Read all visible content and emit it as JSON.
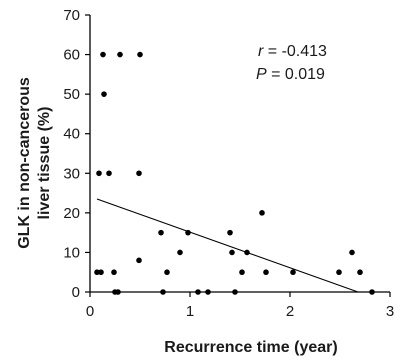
{
  "chart_data": {
    "type": "scatter",
    "title": "",
    "xlabel": "Recurrence time (year)",
    "ylabel_lines": [
      "GLK in non-cancerous",
      "liver tissue (%)"
    ],
    "xlim": [
      0,
      3
    ],
    "ylim": [
      0,
      70
    ],
    "x_ticks": [
      0,
      1,
      2,
      3
    ],
    "y_ticks": [
      0,
      10,
      20,
      30,
      40,
      50,
      60,
      70
    ],
    "grid": false,
    "annotations": {
      "r_symbol": "r",
      "r_value": " = -0.413",
      "p_symbol": "P",
      "p_value": " = 0.019"
    },
    "points": [
      {
        "x": 0.07,
        "y": 5
      },
      {
        "x": 0.11,
        "y": 5
      },
      {
        "x": 0.09,
        "y": 30
      },
      {
        "x": 0.13,
        "y": 60
      },
      {
        "x": 0.14,
        "y": 50
      },
      {
        "x": 0.19,
        "y": 30
      },
      {
        "x": 0.24,
        "y": 5
      },
      {
        "x": 0.25,
        "y": 0
      },
      {
        "x": 0.28,
        "y": 0
      },
      {
        "x": 0.3,
        "y": 60
      },
      {
        "x": 0.49,
        "y": 30
      },
      {
        "x": 0.5,
        "y": 60
      },
      {
        "x": 0.49,
        "y": 8
      },
      {
        "x": 0.71,
        "y": 15
      },
      {
        "x": 0.73,
        "y": 0
      },
      {
        "x": 0.77,
        "y": 5
      },
      {
        "x": 0.9,
        "y": 10
      },
      {
        "x": 0.98,
        "y": 15
      },
      {
        "x": 1.08,
        "y": 0
      },
      {
        "x": 1.18,
        "y": 0
      },
      {
        "x": 1.4,
        "y": 15
      },
      {
        "x": 1.42,
        "y": 10
      },
      {
        "x": 1.45,
        "y": 0
      },
      {
        "x": 1.52,
        "y": 5
      },
      {
        "x": 1.57,
        "y": 10
      },
      {
        "x": 1.72,
        "y": 20
      },
      {
        "x": 1.76,
        "y": 5
      },
      {
        "x": 2.03,
        "y": 5
      },
      {
        "x": 2.49,
        "y": 5
      },
      {
        "x": 2.62,
        "y": 10
      },
      {
        "x": 2.7,
        "y": 5
      },
      {
        "x": 2.82,
        "y": 0
      }
    ],
    "regression_line": {
      "x": [
        0.07,
        2.68
      ],
      "y": [
        23.5,
        0
      ]
    },
    "colors": {
      "point": "#000000",
      "line": "#000000",
      "axis": "#000000"
    }
  }
}
